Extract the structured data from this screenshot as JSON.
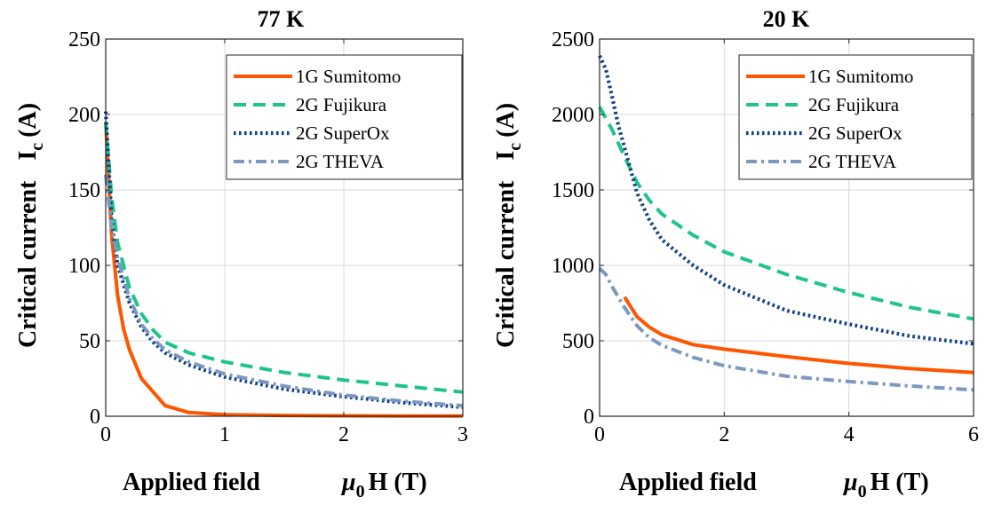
{
  "chart_data": [
    {
      "type": "line",
      "title": "77 K",
      "ylabel_main": "Critical current",
      "ylabel_symbol": "I",
      "ylabel_sub": "c",
      "ylabel_unit": "(A)",
      "xlabel_main": "Applied field",
      "xlabel_symbol": "μ",
      "xlabel_sub": "0",
      "xlabel_unit": "H (T)",
      "xlim": [
        0,
        3
      ],
      "ylim": [
        0,
        250
      ],
      "xticks": [
        0,
        1,
        2,
        3
      ],
      "xtick_labels": [
        "0",
        "1",
        "2",
        "3"
      ],
      "yticks": [
        0,
        50,
        100,
        150,
        200,
        250
      ],
      "ytick_labels": [
        "0",
        "50",
        "100",
        "150",
        "200",
        "250"
      ],
      "grid": true,
      "legend_position": "top-right",
      "series": [
        {
          "name": "1G Sumitomo",
          "color": "#ff5500",
          "dash": "solid",
          "x": [
            0,
            0.03,
            0.05,
            0.1,
            0.15,
            0.2,
            0.3,
            0.5,
            0.7,
            1.0,
            1.5,
            2.0,
            2.5,
            3.0
          ],
          "y": [
            195,
            150,
            120,
            80,
            58,
            44,
            25,
            7,
            2.5,
            1,
            0.5,
            0.3,
            0.2,
            0.1
          ]
        },
        {
          "name": "2G Fujikura",
          "color": "#1ec48c",
          "dash": "dashed",
          "x": [
            0,
            0.05,
            0.1,
            0.2,
            0.3,
            0.4,
            0.5,
            0.7,
            1.0,
            1.5,
            2.0,
            2.5,
            3.0
          ],
          "y": [
            195,
            145,
            115,
            85,
            68,
            57,
            49,
            42,
            36,
            29,
            24,
            20,
            16
          ]
        },
        {
          "name": "2G SuperOx",
          "color": "#0d3f86",
          "dash": "dotted",
          "x": [
            0,
            0.05,
            0.1,
            0.2,
            0.3,
            0.4,
            0.5,
            0.7,
            1.0,
            1.5,
            2.0,
            2.5,
            3.0
          ],
          "y": [
            202,
            130,
            100,
            75,
            59,
            49,
            42,
            34,
            26,
            18,
            13,
            9,
            6
          ]
        },
        {
          "name": "2G THEVA",
          "color": "#7c98c0",
          "dash": "dashdot",
          "x": [
            0,
            0.05,
            0.1,
            0.2,
            0.3,
            0.4,
            0.5,
            0.7,
            1.0,
            1.5,
            2.0,
            2.5,
            3.0
          ],
          "y": [
            160,
            125,
            105,
            78,
            61,
            51,
            44,
            36,
            28,
            20,
            14,
            10,
            7
          ]
        }
      ]
    },
    {
      "type": "line",
      "title": "20 K",
      "ylabel_main": "Critical current",
      "ylabel_symbol": "I",
      "ylabel_sub": "c",
      "ylabel_unit": "(A)",
      "xlabel_main": "Applied field",
      "xlabel_symbol": "μ",
      "xlabel_sub": "0",
      "xlabel_unit": "H (T)",
      "xlim": [
        0,
        6
      ],
      "ylim": [
        0,
        2500
      ],
      "xticks": [
        0,
        2,
        4,
        6
      ],
      "xtick_labels": [
        "0",
        "2",
        "4",
        "6"
      ],
      "yticks": [
        0,
        500,
        1000,
        1500,
        2000,
        2500
      ],
      "ytick_labels": [
        "0",
        "500",
        "1000",
        "1500",
        "2000",
        "2500"
      ],
      "grid": true,
      "legend_position": "top-right",
      "series": [
        {
          "name": "1G Sumitomo",
          "color": "#ff5500",
          "dash": "solid",
          "x": [
            0.4,
            0.6,
            0.8,
            1.0,
            1.5,
            2.0,
            3.0,
            4.0,
            5.0,
            6.0
          ],
          "y": [
            790,
            660,
            590,
            540,
            475,
            445,
            395,
            350,
            315,
            290
          ]
        },
        {
          "name": "2G Fujikura",
          "color": "#1ec48c",
          "dash": "dashed",
          "x": [
            0,
            0.2,
            0.4,
            0.6,
            0.8,
            1.0,
            1.5,
            2.0,
            3.0,
            4.0,
            5.0,
            6.0
          ],
          "y": [
            2050,
            1900,
            1720,
            1550,
            1430,
            1340,
            1200,
            1090,
            940,
            820,
            720,
            645
          ]
        },
        {
          "name": "2G SuperOx",
          "color": "#0d3f86",
          "dash": "dotted",
          "x": [
            0,
            0.1,
            0.2,
            0.3,
            0.4,
            0.6,
            0.8,
            1.0,
            1.5,
            2.0,
            3.0,
            4.0,
            5.0,
            6.0
          ],
          "y": [
            2390,
            2300,
            2120,
            1930,
            1780,
            1480,
            1300,
            1170,
            1000,
            870,
            700,
            610,
            530,
            480
          ]
        },
        {
          "name": "2G THEVA",
          "color": "#7c98c0",
          "dash": "dashdot",
          "x": [
            0,
            0.1,
            0.2,
            0.4,
            0.6,
            0.8,
            1.0,
            1.5,
            2.0,
            3.0,
            4.0,
            5.0,
            6.0
          ],
          "y": [
            980,
            940,
            860,
            720,
            600,
            520,
            470,
            390,
            335,
            265,
            230,
            200,
            175
          ]
        }
      ]
    }
  ]
}
